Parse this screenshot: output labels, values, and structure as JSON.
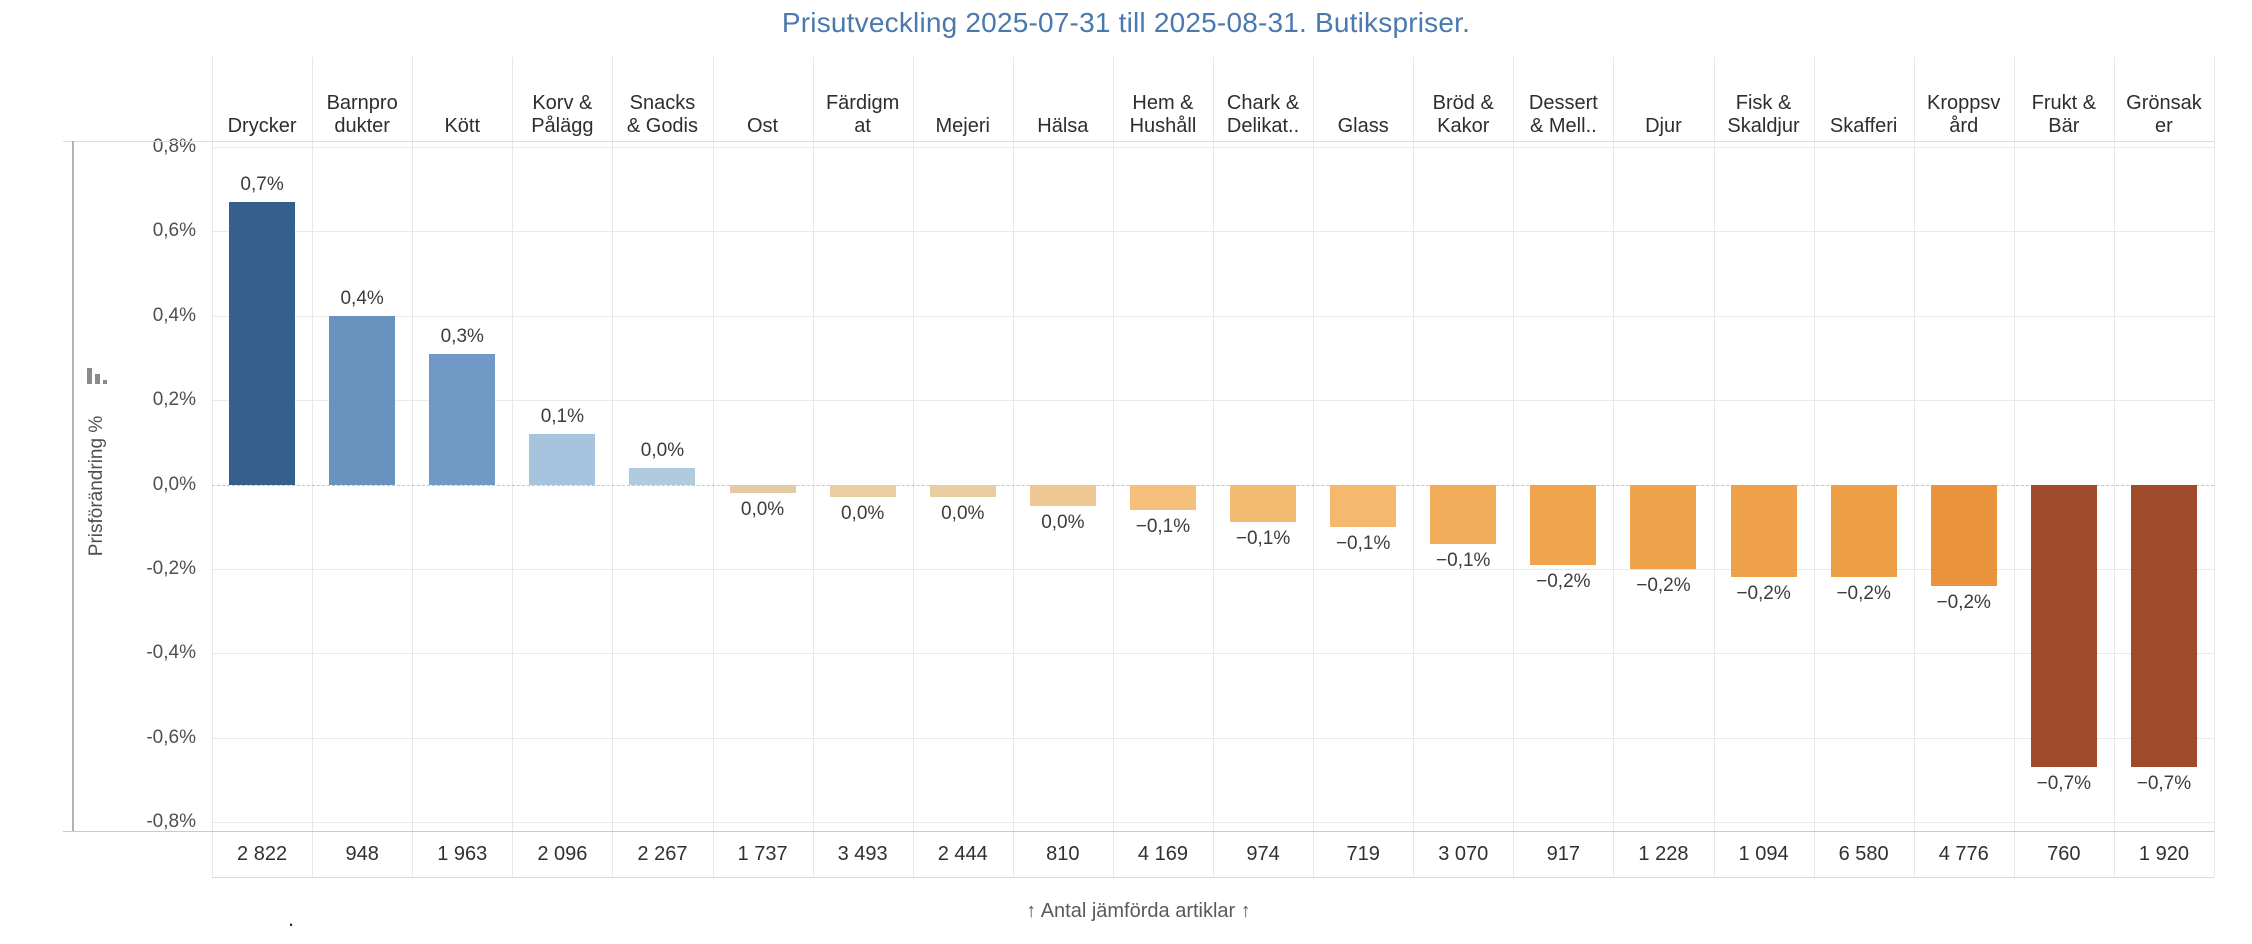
{
  "title": "Prisutveckling 2025-07-31 till 2025-08-31. Butikspriser.",
  "colors": {
    "title_text": "#4a79ad",
    "axis_text": "#4f4f4f",
    "header_text": "#2e2e2e",
    "value_label_text": "#3c3c3c",
    "count_text": "#303030",
    "caption_text": "#5a5a5a",
    "gridline": "#e9e9e9",
    "column_separator": "#e7e7e7",
    "zero_line": "#c4c4c4",
    "axis_rule": "#b3b3b3",
    "positive_max_bar": "#35608d",
    "negative_max_bar": "#9f4a2b"
  },
  "y_axis": {
    "label": "Prisförändring %",
    "sort_icon": "sort-descending-bars-icon",
    "ticks": [
      {
        "label": "0,8%",
        "value": 0.8
      },
      {
        "label": "0,6%",
        "value": 0.6
      },
      {
        "label": "0,4%",
        "value": 0.4
      },
      {
        "label": "0,2%",
        "value": 0.2
      },
      {
        "label": "0,0%",
        "value": 0.0
      },
      {
        "label": "-0,2%",
        "value": -0.2
      },
      {
        "label": "-0,4%",
        "value": -0.4
      },
      {
        "label": "-0,6%",
        "value": -0.6
      },
      {
        "label": "-0,8%",
        "value": -0.8
      }
    ]
  },
  "footer": {
    "caption": "↑ Antal jämförda artiklar ↑",
    "dot": "."
  },
  "chart_data": {
    "type": "bar",
    "title": "Prisutveckling 2025-07-31 till 2025-08-31. Butikspriser.",
    "xlabel": "Antal jämförda artiklar",
    "ylabel": "Prisförändring %",
    "ylim": [
      -0.8,
      0.8
    ],
    "grid": true,
    "decimal_separator": ",",
    "value_suffix": "%",
    "categories": [
      "Drycker",
      "Barnprodukter",
      "Kött",
      "Korv & Pålägg",
      "Snacks & Godis",
      "Ost",
      "Färdigmat",
      "Mejeri",
      "Hälsa",
      "Hem & Hushåll",
      "Chark & Delikat..",
      "Glass",
      "Bröd & Kakor",
      "Dessert & Mell..",
      "Djur",
      "Fisk & Skaldjur",
      "Skafferi",
      "Kroppsvård",
      "Frukt & Bär",
      "Grönsaker"
    ],
    "series": [
      {
        "name": "Prisförändring %",
        "values": [
          0.67,
          0.4,
          0.31,
          0.12,
          0.04,
          -0.02,
          -0.03,
          -0.03,
          -0.05,
          -0.06,
          -0.09,
          -0.1,
          -0.14,
          -0.19,
          -0.2,
          -0.22,
          -0.22,
          -0.24,
          -0.67,
          -0.67
        ]
      },
      {
        "name": "Antal jämförda artiklar",
        "values": [
          2822,
          948,
          1963,
          2096,
          2267,
          1737,
          3493,
          2444,
          810,
          4169,
          974,
          719,
          3070,
          917,
          1228,
          1094,
          6580,
          4776,
          760,
          1920
        ]
      }
    ],
    "columns": [
      {
        "category": "Drycker",
        "label_lines": [
          "Drycker"
        ],
        "value": 0.67,
        "value_label": "0,7%",
        "count": 2822,
        "count_label": "2 822",
        "color": "#35608d"
      },
      {
        "category": "Barnprodukter",
        "label_lines": [
          "Barnpro",
          "dukter"
        ],
        "value": 0.4,
        "value_label": "0,4%",
        "count": 948,
        "count_label": "948",
        "color": "#6a92bf"
      },
      {
        "category": "Kött",
        "label_lines": [
          "Kött"
        ],
        "value": 0.31,
        "value_label": "0,3%",
        "count": 1963,
        "count_label": "1 963",
        "color": "#7099c5"
      },
      {
        "category": "Korv & Pålägg",
        "label_lines": [
          "Korv &",
          "Pålägg"
        ],
        "value": 0.12,
        "value_label": "0,1%",
        "count": 2096,
        "count_label": "2 096",
        "color": "#a6c4de"
      },
      {
        "category": "Snacks & Godis",
        "label_lines": [
          "Snacks",
          "& Godis"
        ],
        "value": 0.04,
        "value_label": "0,0%",
        "count": 2267,
        "count_label": "2 267",
        "color": "#b0cbde"
      },
      {
        "category": "Ost",
        "label_lines": [
          "Ost"
        ],
        "value": -0.02,
        "value_label": "0,0%",
        "count": 1737,
        "count_label": "1 737",
        "color": "#e3c9a4"
      },
      {
        "category": "Färdigmat",
        "label_lines": [
          "Färdigm",
          "at"
        ],
        "value": -0.03,
        "value_label": "0,0%",
        "count": 3493,
        "count_label": "3 493",
        "color": "#e9cfa2"
      },
      {
        "category": "Mejeri",
        "label_lines": [
          "Mejeri"
        ],
        "value": -0.03,
        "value_label": "0,0%",
        "count": 2444,
        "count_label": "2 444",
        "color": "#e8cda0"
      },
      {
        "category": "Hälsa",
        "label_lines": [
          "Hälsa"
        ],
        "value": -0.05,
        "value_label": "0,0%",
        "count": 810,
        "count_label": "810",
        "color": "#eec795"
      },
      {
        "category": "Hem & Hushåll",
        "label_lines": [
          "Hem &",
          "Hushåll"
        ],
        "value": -0.06,
        "value_label": "−0,1%",
        "count": 4169,
        "count_label": "4 169",
        "color": "#f4c07c"
      },
      {
        "category": "Chark & Delikat..",
        "label_lines": [
          "Chark &",
          "Delikat.."
        ],
        "value": -0.09,
        "value_label": "−0,1%",
        "count": 974,
        "count_label": "974",
        "color": "#f3bb72"
      },
      {
        "category": "Glass",
        "label_lines": [
          "Glass"
        ],
        "value": -0.1,
        "value_label": "−0,1%",
        "count": 719,
        "count_label": "719",
        "color": "#f4b96e"
      },
      {
        "category": "Bröd & Kakor",
        "label_lines": [
          "Bröd &",
          "Kakor"
        ],
        "value": -0.14,
        "value_label": "−0,1%",
        "count": 3070,
        "count_label": "3 070",
        "color": "#f1ad59"
      },
      {
        "category": "Dessert & Mell..",
        "label_lines": [
          "Dessert",
          "& Mell.."
        ],
        "value": -0.19,
        "value_label": "−0,2%",
        "count": 917,
        "count_label": "917",
        "color": "#f0a54c"
      },
      {
        "category": "Djur",
        "label_lines": [
          "Djur"
        ],
        "value": -0.2,
        "value_label": "−0,2%",
        "count": 1228,
        "count_label": "1 228",
        "color": "#efa44b"
      },
      {
        "category": "Fisk & Skaldjur",
        "label_lines": [
          "Fisk &",
          "Skaldjur"
        ],
        "value": -0.22,
        "value_label": "−0,2%",
        "count": 1094,
        "count_label": "1 094",
        "color": "#eea148"
      },
      {
        "category": "Skafferi",
        "label_lines": [
          "Skafferi"
        ],
        "value": -0.22,
        "value_label": "−0,2%",
        "count": 6580,
        "count_label": "6 580",
        "color": "#ed9f45"
      },
      {
        "category": "Kroppsvård",
        "label_lines": [
          "Kroppsv",
          "ård"
        ],
        "value": -0.24,
        "value_label": "−0,2%",
        "count": 4776,
        "count_label": "4 776",
        "color": "#e9943d"
      },
      {
        "category": "Frukt & Bär",
        "label_lines": [
          "Frukt &",
          "Bär"
        ],
        "value": -0.67,
        "value_label": "−0,7%",
        "count": 760,
        "count_label": "760",
        "color": "#9f4a2b"
      },
      {
        "category": "Grönsaker",
        "label_lines": [
          "Grönsak",
          "er"
        ],
        "value": -0.67,
        "value_label": "−0,7%",
        "count": 1920,
        "count_label": "1 920",
        "color": "#9f4a2b"
      }
    ]
  }
}
